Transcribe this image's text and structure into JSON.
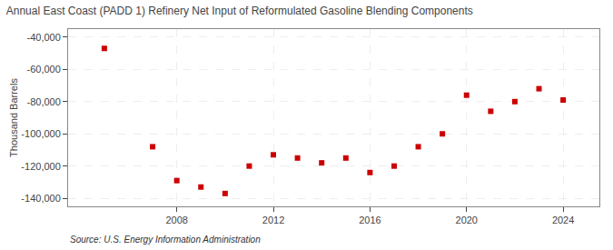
{
  "chart_data": {
    "type": "scatter",
    "title": "Annual East Coast (PADD 1) Refinery Net Input of Reformulated Gasoline Blending Components",
    "ylabel": "Thousand Barrels",
    "source": "Source: U.S. Energy Information Administration",
    "x": [
      2005,
      2007,
      2008,
      2009,
      2010,
      2011,
      2012,
      2013,
      2014,
      2015,
      2016,
      2017,
      2018,
      2019,
      2020,
      2021,
      2022,
      2023,
      2024
    ],
    "values": [
      -47000,
      -108000,
      -129000,
      -133000,
      -137000,
      -120000,
      -113000,
      -115000,
      -118000,
      -115000,
      -124000,
      -120000,
      -108000,
      -100000,
      -76000,
      -86000,
      -80000,
      -72000,
      -79000
    ],
    "color": "#cc0000",
    "marker": "square",
    "xlim": [
      2003.5,
      2025.5
    ],
    "xticks": [
      2008,
      2012,
      2016,
      2020,
      2024
    ],
    "ylim": [
      -145000,
      -35000
    ],
    "yticks": [
      {
        "value": -140000,
        "label": "-140,000"
      },
      {
        "value": -120000,
        "label": "-120,000"
      },
      {
        "value": -100000,
        "label": "-100,000"
      },
      {
        "value": -80000,
        "label": "-80,000"
      },
      {
        "value": -60000,
        "label": "-60,000"
      },
      {
        "value": -40000,
        "label": "-40,000"
      }
    ],
    "grid": true
  }
}
